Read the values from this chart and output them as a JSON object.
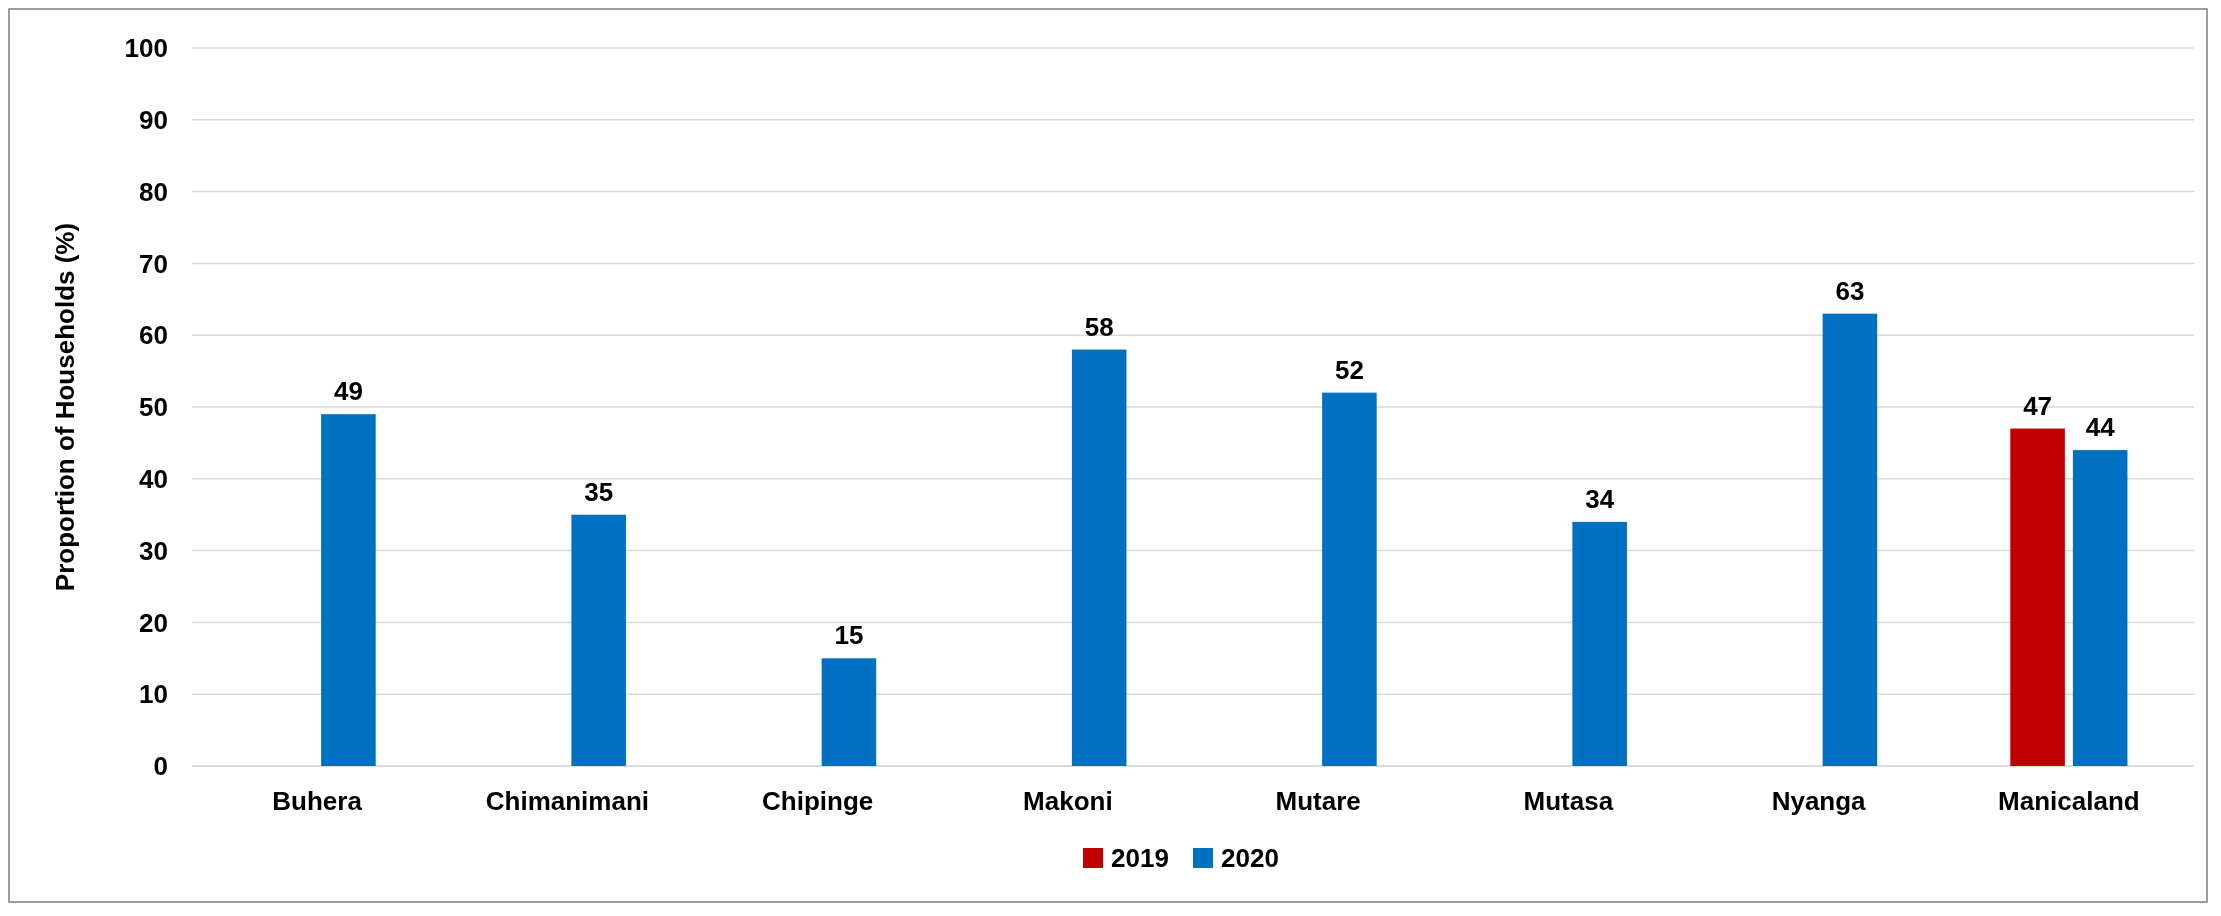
{
  "chart_data": {
    "type": "bar",
    "ylabel": "Proportion of Households (%)",
    "categories": [
      "Buhera",
      "Chimanimani",
      "Chipinge",
      "Makoni",
      "Mutare",
      "Mutasa",
      "Nyanga",
      "Manicaland"
    ],
    "series": [
      {
        "name": "2019",
        "color": "#c00000",
        "values": [
          null,
          null,
          null,
          null,
          null,
          null,
          null,
          47
        ]
      },
      {
        "name": "2020",
        "color": "#0070c0",
        "values": [
          49,
          35,
          15,
          58,
          52,
          34,
          63,
          44
        ]
      }
    ],
    "ylim": [
      0,
      100
    ],
    "yticks": [
      0,
      10,
      20,
      30,
      40,
      50,
      60,
      70,
      80,
      90,
      100
    ],
    "grid": "y",
    "legend": "bottom",
    "data_labels": true
  }
}
